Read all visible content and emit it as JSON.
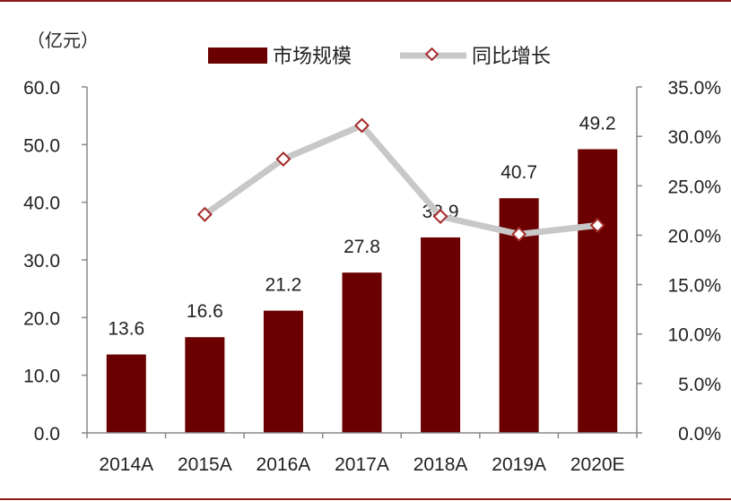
{
  "chart_data": {
    "type": "bar+line",
    "unit_label": "（亿元）",
    "categories": [
      "2014A",
      "2015A",
      "2016A",
      "2017A",
      "2018A",
      "2019A",
      "2020E"
    ],
    "series": [
      {
        "name": "市场规模",
        "kind": "bar",
        "axis": "left",
        "color": "#6b0000",
        "values": [
          13.6,
          16.6,
          21.2,
          27.8,
          33.9,
          40.7,
          49.2
        ],
        "labels": [
          "13.6",
          "16.6",
          "21.2",
          "27.8",
          "33.9",
          "40.7",
          "49.2"
        ]
      },
      {
        "name": "同比增长",
        "kind": "line",
        "axis": "right",
        "line_color": "#c8c8c8",
        "marker_color": "#a52a2a",
        "values": [
          null,
          22.1,
          27.7,
          31.1,
          21.9,
          20.1,
          21.0
        ]
      }
    ],
    "left_axis": {
      "min": 0,
      "max": 60,
      "ticks": [
        0,
        10,
        20,
        30,
        40,
        50,
        60
      ],
      "tick_labels": [
        "0.0",
        "10.0",
        "20.0",
        "30.0",
        "40.0",
        "50.0",
        "60.0"
      ]
    },
    "right_axis": {
      "min": 0,
      "max": 35,
      "ticks": [
        0,
        5,
        10,
        15,
        20,
        25,
        30,
        35
      ],
      "tick_labels": [
        "0.0%",
        "5.0%",
        "10.0%",
        "15.0%",
        "20.0%",
        "25.0%",
        "30.0%",
        "35.0%"
      ]
    },
    "legend_position": "top-center",
    "grid": false
  }
}
